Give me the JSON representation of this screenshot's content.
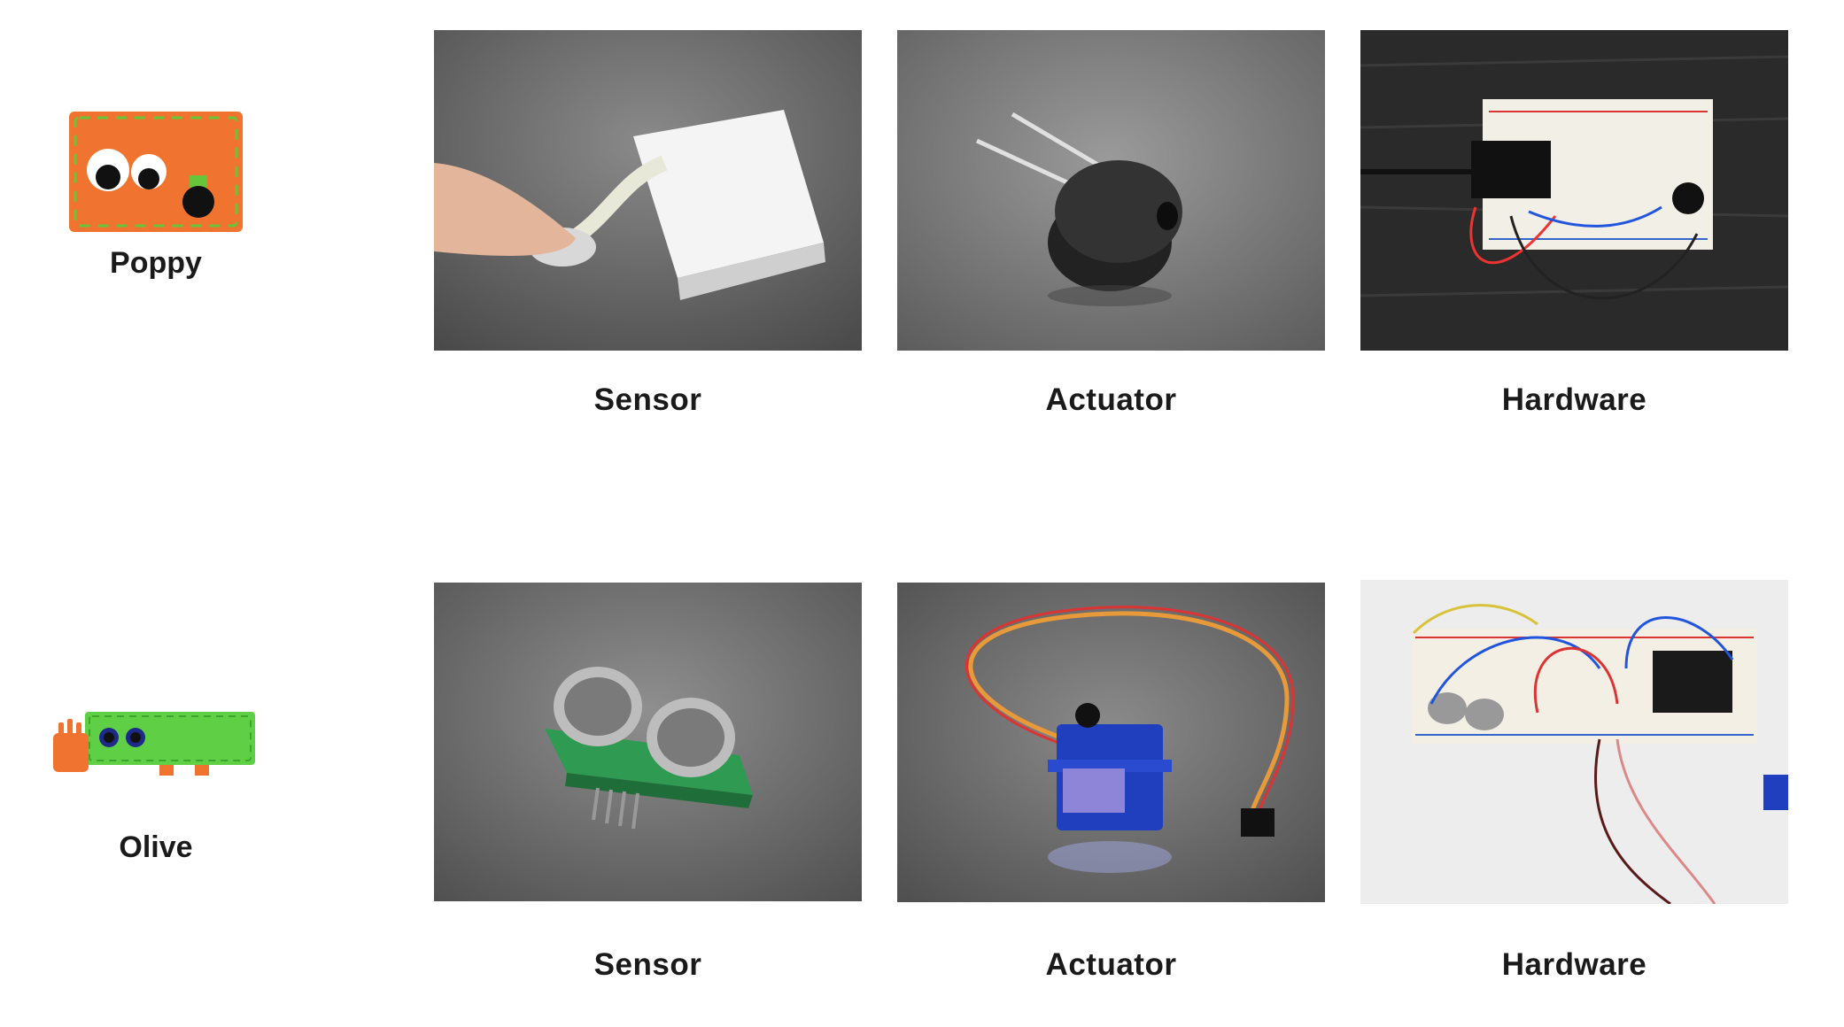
{
  "rows": [
    {
      "character": {
        "name": "Poppy",
        "icon": "poppy-character-icon",
        "color": "#f07430",
        "accent": "#68c43a"
      },
      "tiles": [
        {
          "caption": "Sensor",
          "image": "force-sensor-breadboard-photo"
        },
        {
          "caption": "Actuator",
          "image": "piezo-buzzer-photo"
        },
        {
          "caption": "Hardware",
          "image": "breadboard-circuit-photo"
        }
      ]
    },
    {
      "character": {
        "name": "Olive",
        "icon": "olive-character-icon",
        "color": "#5fcf45",
        "accent": "#f07430"
      },
      "tiles": [
        {
          "caption": "Sensor",
          "image": "ultrasonic-sensor-photo"
        },
        {
          "caption": "Actuator",
          "image": "micro-servo-photo"
        },
        {
          "caption": "Hardware",
          "image": "breadboard-circuit-servo-photo"
        }
      ]
    }
  ]
}
